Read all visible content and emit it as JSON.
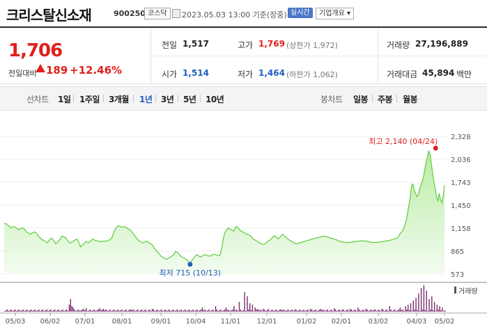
{
  "header": {
    "stock_name": "크리스탈신소재",
    "stock_code": "900250",
    "market": "코스닥",
    "timestamp": "2023.05.03 13:00 기준(장중)",
    "realtime": "실시간",
    "company_info": "기업개요 ▾"
  },
  "quote": {
    "price": "1,706",
    "change_label": "전일대비",
    "change": "189",
    "change_pct": "+12.46%",
    "prev_close_label": "전일",
    "prev_close": "1,517",
    "open_label": "시가",
    "open": "1,514",
    "high_label": "고가",
    "high": "1,769",
    "upper_limit": "(상한가 1,972)",
    "low_label": "저가",
    "low": "1,464",
    "lower_limit": "(하한가 1,062)",
    "volume_label": "거래량",
    "volume": "27,196,889",
    "amount_label": "거래대금",
    "amount": "45,894",
    "amount_unit": "백만"
  },
  "tabs": {
    "line_label": "선차트",
    "line_periods": [
      "1일",
      "1주일",
      "3개월",
      "1년",
      "3년",
      "5년",
      "10년"
    ],
    "active": "1년",
    "candle_label": "봉차트",
    "candle_periods": [
      "일봉",
      "주봉",
      "월봉"
    ]
  },
  "chart_data": {
    "type": "area",
    "price_ticks": [
      "2,328",
      "2,036",
      "1,743",
      "1,450",
      "1,158",
      "865",
      "573"
    ],
    "ylim": [
      573,
      2328
    ],
    "high_annotation": "최고 2,140 (04/24)",
    "low_annotation": "최저 715 (10/13)",
    "high": {
      "date": "04/24",
      "value": 2140
    },
    "low": {
      "date": "10/13",
      "value": 715
    },
    "volume_label": "거래량",
    "x_ticks": [
      "05/03",
      "06/02",
      "07/01",
      "08/01",
      "09/01",
      "10/04",
      "11/01",
      "12/01",
      "01/02",
      "02/01",
      "03/02",
      "04/03",
      "05/02"
    ],
    "price_values": [
      1220,
      1215,
      1210,
      1195,
      1180,
      1160,
      1170,
      1180,
      1175,
      1160,
      1150,
      1140,
      1145,
      1155,
      1160,
      1150,
      1130,
      1110,
      1100,
      1090,
      1080,
      1095,
      1100,
      1110,
      1100,
      1080,
      1060,
      1040,
      1020,
      1010,
      1000,
      990,
      980,
      970,
      1000,
      1020,
      1030,
      1010,
      990,
      960,
      970,
      990,
      1010,
      1030,
      1060,
      1050,
      1040,
      1030,
      1000,
      980,
      970,
      975,
      990,
      1000,
      1010,
      1020,
      1000,
      960,
      920,
      940,
      950,
      970,
      990,
      980,
      970,
      990,
      1000,
      1020,
      1010,
      1000,
      1000,
      995,
      990,
      990,
      985,
      990,
      995,
      990,
      995,
      1000,
      1010,
      1020,
      1050,
      1100,
      1140,
      1160,
      1180,
      1190,
      1180,
      1170,
      1175,
      1180,
      1170,
      1160,
      1150,
      1140,
      1130,
      1110,
      1090,
      1060,
      1040,
      1020,
      1000,
      990,
      980,
      970,
      975,
      985,
      990,
      985,
      970,
      960,
      950,
      930,
      900,
      880,
      860,
      840,
      820,
      800,
      790,
      780,
      770,
      760,
      770,
      780,
      790,
      800,
      810,
      830,
      860,
      850,
      840,
      820,
      800,
      790,
      780,
      770,
      760,
      750,
      720,
      715,
      740,
      760,
      780,
      800,
      820,
      810,
      800,
      790,
      800,
      810,
      820,
      815,
      810,
      805,
      800,
      810,
      820,
      825,
      820,
      815,
      810,
      805,
      830,
      900,
      1000,
      1080,
      1120,
      1140,
      1160,
      1150,
      1140,
      1130,
      1120,
      1150,
      1180,
      1170,
      1150,
      1130,
      1120,
      1110,
      1100,
      1090,
      1080,
      1075,
      1070,
      1060,
      1040,
      1020,
      1010,
      1000,
      990,
      980,
      970,
      960,
      955,
      950,
      960,
      975,
      990,
      1000,
      1010,
      1030,
      1050,
      1060,
      1050,
      1030,
      1020,
      1040,
      1060,
      1080,
      1070,
      1050,
      1040,
      1020,
      1010,
      1000,
      990,
      980,
      970,
      960,
      960,
      965,
      970,
      975,
      980,
      985,
      990,
      995,
      1000,
      1005,
      1010,
      1015,
      1020,
      1025,
      1030,
      1035,
      1040,
      1040,
      1045,
      1050,
      1055,
      1055,
      1050,
      1045,
      1040,
      1035,
      1030,
      1025,
      1020,
      1015,
      1010,
      1000,
      995,
      990,
      985,
      980,
      978,
      976,
      975,
      976,
      978,
      980,
      982,
      984,
      986,
      988,
      990,
      992,
      994,
      996,
      995,
      994,
      993,
      992,
      990,
      985,
      980,
      978,
      976,
      975,
      976,
      978,
      980,
      982,
      985,
      988,
      990,
      992,
      995,
      998,
      1000,
      1005,
      1010,
      1015,
      1020,
      1025,
      1030,
      1050,
      1080,
      1100,
      1120,
      1150,
      1200,
      1250,
      1350,
      1450,
      1550,
      1700,
      1720,
      1650,
      1600,
      1560,
      1580,
      1650,
      1700,
      1750,
      1800,
      1900,
      2000,
      2060,
      2140,
      2100,
      1980,
      1850,
      1750,
      1650,
      1560,
      1500,
      1600,
      1520,
      1480,
      1560,
      1706
    ]
  }
}
